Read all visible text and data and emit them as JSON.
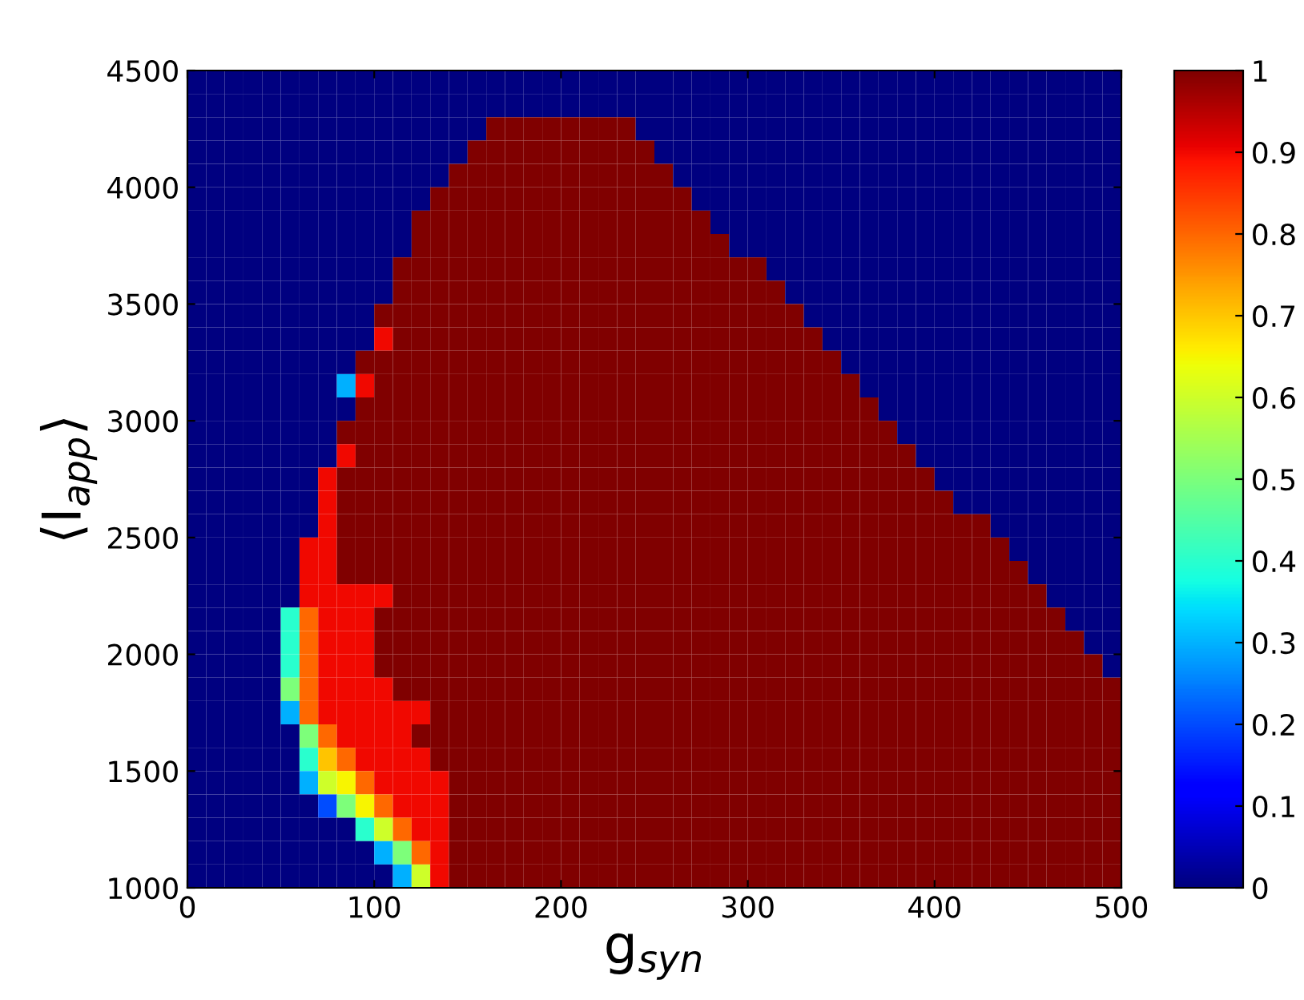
{
  "chart_data": {
    "type": "heatmap",
    "xlabel": "g$_{syn}$",
    "ylabel": "⟨I$_{app}$⟩",
    "x": [
      5,
      15,
      25,
      35,
      45,
      55,
      65,
      75,
      85,
      95,
      105,
      115,
      125,
      135,
      145,
      155,
      165,
      175,
      185,
      195,
      205,
      215,
      225,
      235,
      245,
      255,
      265,
      275,
      285,
      295,
      305,
      315,
      325,
      335,
      345,
      355,
      365,
      375,
      385,
      395,
      405,
      415,
      425,
      435,
      445,
      455,
      465,
      475,
      485,
      495
    ],
    "y": [
      4450,
      4350,
      4250,
      4150,
      4050,
      3950,
      3850,
      3750,
      3650,
      3550,
      3450,
      3350,
      3250,
      3150,
      3050,
      2950,
      2850,
      2750,
      2650,
      2550,
      2450,
      2350,
      2250,
      2150,
      2050,
      1950,
      1850,
      1750,
      1650,
      1550,
      1450,
      1350,
      1250,
      1150,
      1050
    ],
    "xlim": [
      0,
      500
    ],
    "xticks": [
      0,
      100,
      200,
      300,
      400,
      500
    ],
    "ylim": [
      1000,
      4500
    ],
    "yticks": [
      1000,
      1500,
      2000,
      2500,
      3000,
      3500,
      4000,
      4500
    ],
    "clim": [
      0,
      1
    ],
    "cticks": [
      0,
      0.1,
      0.2,
      0.3,
      0.4,
      0.5,
      0.6,
      0.7,
      0.8,
      0.9,
      1
    ],
    "cells": [
      [
        0,
        0,
        0,
        0,
        0,
        0,
        0,
        0,
        0,
        0,
        0,
        0,
        0,
        0,
        0,
        0,
        0,
        0,
        0,
        0,
        0,
        0,
        0,
        0,
        0,
        0,
        0,
        0,
        0,
        0,
        0,
        0,
        0,
        0,
        0,
        0,
        0,
        0,
        0,
        0,
        0,
        0,
        0,
        0,
        0,
        0,
        0,
        0,
        0,
        0
      ],
      [
        0,
        0,
        0,
        0,
        0,
        0,
        0,
        0,
        0,
        0,
        0,
        0,
        0,
        0,
        0,
        0,
        0,
        0,
        0,
        0,
        0,
        0,
        0,
        0,
        0,
        0,
        0,
        0,
        0,
        0,
        0,
        0,
        0,
        0,
        0,
        0,
        0,
        0,
        0,
        0,
        0,
        0,
        0,
        0,
        0,
        0,
        0,
        0,
        0,
        0
      ],
      [
        0,
        0,
        0,
        0,
        0,
        0,
        0,
        0,
        0,
        0,
        0,
        0,
        0,
        0,
        0,
        0,
        1,
        1,
        1,
        1,
        1,
        1,
        1,
        1,
        0,
        0,
        0,
        0,
        0,
        0,
        0,
        0,
        0,
        0,
        0,
        0,
        0,
        0,
        0,
        0,
        0,
        0,
        0,
        0,
        0,
        0,
        0,
        0,
        0,
        0
      ],
      [
        0,
        0,
        0,
        0,
        0,
        0,
        0,
        0,
        0,
        0,
        0,
        0,
        0,
        0,
        0,
        1,
        1,
        1,
        1,
        1,
        1,
        1,
        1,
        1,
        1,
        0,
        0,
        0,
        0,
        0,
        0,
        0,
        0,
        0,
        0,
        0,
        0,
        0,
        0,
        0,
        0,
        0,
        0,
        0,
        0,
        0,
        0,
        0,
        0,
        0
      ],
      [
        0,
        0,
        0,
        0,
        0,
        0,
        0,
        0,
        0,
        0,
        0,
        0,
        0,
        0,
        1,
        1,
        1,
        1,
        1,
        1,
        1,
        1,
        1,
        1,
        1,
        1,
        0,
        0,
        0,
        0,
        0,
        0,
        0,
        0,
        0,
        0,
        0,
        0,
        0,
        0,
        0,
        0,
        0,
        0,
        0,
        0,
        0,
        0,
        0,
        0
      ],
      [
        0,
        0,
        0,
        0,
        0,
        0,
        0,
        0,
        0,
        0,
        0,
        0,
        0,
        1,
        1,
        1,
        1,
        1,
        1,
        1,
        1,
        1,
        1,
        1,
        1,
        1,
        1,
        0,
        0,
        0,
        0,
        0,
        0,
        0,
        0,
        0,
        0,
        0,
        0,
        0,
        0,
        0,
        0,
        0,
        0,
        0,
        0,
        0,
        0,
        0
      ],
      [
        0,
        0,
        0,
        0,
        0,
        0,
        0,
        0,
        0,
        0,
        0,
        0,
        1,
        1,
        1,
        1,
        1,
        1,
        1,
        1,
        1,
        1,
        1,
        1,
        1,
        1,
        1,
        1,
        0,
        0,
        0,
        0,
        0,
        0,
        0,
        0,
        0,
        0,
        0,
        0,
        0,
        0,
        0,
        0,
        0,
        0,
        0,
        0,
        0,
        0
      ],
      [
        0,
        0,
        0,
        0,
        0,
        0,
        0,
        0,
        0,
        0,
        0,
        0,
        1,
        1,
        1,
        1,
        1,
        1,
        1,
        1,
        1,
        1,
        1,
        1,
        1,
        1,
        1,
        1,
        1,
        0,
        0,
        0,
        0,
        0,
        0,
        0,
        0,
        0,
        0,
        0,
        0,
        0,
        0,
        0,
        0,
        0,
        0,
        0,
        0,
        0
      ],
      [
        0,
        0,
        0,
        0,
        0,
        0,
        0,
        0,
        0,
        0,
        0,
        1,
        1,
        1,
        1,
        1,
        1,
        1,
        1,
        1,
        1,
        1,
        1,
        1,
        1,
        1,
        1,
        1,
        1,
        1,
        1,
        0,
        0,
        0,
        0,
        0,
        0,
        0,
        0,
        0,
        0,
        0,
        0,
        0,
        0,
        0,
        0,
        0,
        0,
        0
      ],
      [
        0,
        0,
        0,
        0,
        0,
        0,
        0,
        0,
        0,
        0,
        0,
        1,
        1,
        1,
        1,
        1,
        1,
        1,
        1,
        1,
        1,
        1,
        1,
        1,
        1,
        1,
        1,
        1,
        1,
        1,
        1,
        1,
        0,
        0,
        0,
        0,
        0,
        0,
        0,
        0,
        0,
        0,
        0,
        0,
        0,
        0,
        0,
        0,
        0,
        0
      ],
      [
        0,
        0,
        0,
        0,
        0,
        0,
        0,
        0,
        0,
        0,
        1,
        1,
        1,
        1,
        1,
        1,
        1,
        1,
        1,
        1,
        1,
        1,
        1,
        1,
        1,
        1,
        1,
        1,
        1,
        1,
        1,
        1,
        1,
        0,
        0,
        0,
        0,
        0,
        0,
        0,
        0,
        0,
        0,
        0,
        0,
        0,
        0,
        0,
        0,
        0
      ],
      [
        0,
        0,
        0,
        0,
        0,
        0,
        0,
        0,
        0,
        0,
        0.9,
        1,
        1,
        1,
        1,
        1,
        1,
        1,
        1,
        1,
        1,
        1,
        1,
        1,
        1,
        1,
        1,
        1,
        1,
        1,
        1,
        1,
        1,
        1,
        0,
        0,
        0,
        0,
        0,
        0,
        0,
        0,
        0,
        0,
        0,
        0,
        0,
        0,
        0,
        0
      ],
      [
        0,
        0,
        0,
        0,
        0,
        0,
        0,
        0,
        0,
        1,
        1,
        1,
        1,
        1,
        1,
        1,
        1,
        1,
        1,
        1,
        1,
        1,
        1,
        1,
        1,
        1,
        1,
        1,
        1,
        1,
        1,
        1,
        1,
        1,
        1,
        0,
        0,
        0,
        0,
        0,
        0,
        0,
        0,
        0,
        0,
        0,
        0,
        0,
        0,
        0
      ],
      [
        0,
        0,
        0,
        0,
        0,
        0,
        0,
        0,
        0.3,
        0.9,
        1,
        1,
        1,
        1,
        1,
        1,
        1,
        1,
        1,
        1,
        1,
        1,
        1,
        1,
        1,
        1,
        1,
        1,
        1,
        1,
        1,
        1,
        1,
        1,
        1,
        1,
        0,
        0,
        0,
        0,
        0,
        0,
        0,
        0,
        0,
        0,
        0,
        0,
        0,
        0
      ],
      [
        0,
        0,
        0,
        0,
        0,
        0,
        0,
        0,
        0,
        1,
        1,
        1,
        1,
        1,
        1,
        1,
        1,
        1,
        1,
        1,
        1,
        1,
        1,
        1,
        1,
        1,
        1,
        1,
        1,
        1,
        1,
        1,
        1,
        1,
        1,
        1,
        1,
        0,
        0,
        0,
        0,
        0,
        0,
        0,
        0,
        0,
        0,
        0,
        0,
        0
      ],
      [
        0,
        0,
        0,
        0,
        0,
        0,
        0,
        0,
        1,
        1,
        1,
        1,
        1,
        1,
        1,
        1,
        1,
        1,
        1,
        1,
        1,
        1,
        1,
        1,
        1,
        1,
        1,
        1,
        1,
        1,
        1,
        1,
        1,
        1,
        1,
        1,
        1,
        1,
        0,
        0,
        0,
        0,
        0,
        0,
        0,
        0,
        0,
        0,
        0,
        0
      ],
      [
        0,
        0,
        0,
        0,
        0,
        0,
        0,
        0,
        0.9,
        1,
        1,
        1,
        1,
        1,
        1,
        1,
        1,
        1,
        1,
        1,
        1,
        1,
        1,
        1,
        1,
        1,
        1,
        1,
        1,
        1,
        1,
        1,
        1,
        1,
        1,
        1,
        1,
        1,
        1,
        0,
        0,
        0,
        0,
        0,
        0,
        0,
        0,
        0,
        0,
        0
      ],
      [
        0,
        0,
        0,
        0,
        0,
        0,
        0,
        0.9,
        1,
        1,
        1,
        1,
        1,
        1,
        1,
        1,
        1,
        1,
        1,
        1,
        1,
        1,
        1,
        1,
        1,
        1,
        1,
        1,
        1,
        1,
        1,
        1,
        1,
        1,
        1,
        1,
        1,
        1,
        1,
        1,
        0,
        0,
        0,
        0,
        0,
        0,
        0,
        0,
        0,
        0
      ],
      [
        0,
        0,
        0,
        0,
        0,
        0,
        0,
        0.9,
        1,
        1,
        1,
        1,
        1,
        1,
        1,
        1,
        1,
        1,
        1,
        1,
        1,
        1,
        1,
        1,
        1,
        1,
        1,
        1,
        1,
        1,
        1,
        1,
        1,
        1,
        1,
        1,
        1,
        1,
        1,
        1,
        1,
        0,
        0,
        0,
        0,
        0,
        0,
        0,
        0,
        0
      ],
      [
        0,
        0,
        0,
        0,
        0,
        0,
        0,
        0.9,
        1,
        1,
        1,
        1,
        1,
        1,
        1,
        1,
        1,
        1,
        1,
        1,
        1,
        1,
        1,
        1,
        1,
        1,
        1,
        1,
        1,
        1,
        1,
        1,
        1,
        1,
        1,
        1,
        1,
        1,
        1,
        1,
        1,
        1,
        1,
        0,
        0,
        0,
        0,
        0,
        0,
        0
      ],
      [
        0,
        0,
        0,
        0,
        0,
        0,
        0.9,
        0.9,
        1,
        1,
        1,
        1,
        1,
        1,
        1,
        1,
        1,
        1,
        1,
        1,
        1,
        1,
        1,
        1,
        1,
        1,
        1,
        1,
        1,
        1,
        1,
        1,
        1,
        1,
        1,
        1,
        1,
        1,
        1,
        1,
        1,
        1,
        1,
        1,
        0,
        0,
        0,
        0,
        0,
        0
      ],
      [
        0,
        0,
        0,
        0,
        0,
        0,
        0.9,
        0.9,
        1,
        1,
        1,
        1,
        1,
        1,
        1,
        1,
        1,
        1,
        1,
        1,
        1,
        1,
        1,
        1,
        1,
        1,
        1,
        1,
        1,
        1,
        1,
        1,
        1,
        1,
        1,
        1,
        1,
        1,
        1,
        1,
        1,
        1,
        1,
        1,
        1,
        0,
        0,
        0,
        0,
        0
      ],
      [
        0,
        0,
        0,
        0,
        0,
        0,
        0.9,
        0.9,
        0.9,
        0.9,
        0.9,
        1,
        1,
        1,
        1,
        1,
        1,
        1,
        1,
        1,
        1,
        1,
        1,
        1,
        1,
        1,
        1,
        1,
        1,
        1,
        1,
        1,
        1,
        1,
        1,
        1,
        1,
        1,
        1,
        1,
        1,
        1,
        1,
        1,
        1,
        1,
        0,
        0,
        0,
        0
      ],
      [
        0,
        0,
        0,
        0,
        0,
        0.4,
        0.8,
        0.9,
        0.9,
        0.9,
        1,
        1,
        1,
        1,
        1,
        1,
        1,
        1,
        1,
        1,
        1,
        1,
        1,
        1,
        1,
        1,
        1,
        1,
        1,
        1,
        1,
        1,
        1,
        1,
        1,
        1,
        1,
        1,
        1,
        1,
        1,
        1,
        1,
        1,
        1,
        1,
        1,
        0,
        0,
        0
      ],
      [
        0,
        0,
        0,
        0,
        0,
        0.4,
        0.8,
        0.9,
        0.9,
        0.9,
        1,
        1,
        1,
        1,
        1,
        1,
        1,
        1,
        1,
        1,
        1,
        1,
        1,
        1,
        1,
        1,
        1,
        1,
        1,
        1,
        1,
        1,
        1,
        1,
        1,
        1,
        1,
        1,
        1,
        1,
        1,
        1,
        1,
        1,
        1,
        1,
        1,
        1,
        0,
        0
      ],
      [
        0,
        0,
        0,
        0,
        0,
        0.4,
        0.8,
        0.9,
        0.9,
        0.9,
        1,
        1,
        1,
        1,
        1,
        1,
        1,
        1,
        1,
        1,
        1,
        1,
        1,
        1,
        1,
        1,
        1,
        1,
        1,
        1,
        1,
        1,
        1,
        1,
        1,
        1,
        1,
        1,
        1,
        1,
        1,
        1,
        1,
        1,
        1,
        1,
        1,
        1,
        1,
        0
      ],
      [
        0,
        0,
        0,
        0,
        0,
        0.5,
        0.8,
        0.9,
        0.9,
        0.9,
        0.9,
        1,
        1,
        1,
        1,
        1,
        1,
        1,
        1,
        1,
        1,
        1,
        1,
        1,
        1,
        1,
        1,
        1,
        1,
        1,
        1,
        1,
        1,
        1,
        1,
        1,
        1,
        1,
        1,
        1,
        1,
        1,
        1,
        1,
        1,
        1,
        1,
        1,
        1,
        1
      ],
      [
        0,
        0,
        0,
        0,
        0,
        0.3,
        0.8,
        0.9,
        0.9,
        0.9,
        0.9,
        0.9,
        0.9,
        1,
        1,
        1,
        1,
        1,
        1,
        1,
        1,
        1,
        1,
        1,
        1,
        1,
        1,
        1,
        1,
        1,
        1,
        1,
        1,
        1,
        1,
        1,
        1,
        1,
        1,
        1,
        1,
        1,
        1,
        1,
        1,
        1,
        1,
        1,
        1,
        1
      ],
      [
        0,
        0,
        0,
        0,
        0,
        0,
        0.5,
        0.8,
        0.9,
        0.9,
        0.9,
        0.9,
        1,
        1,
        1,
        1,
        1,
        1,
        1,
        1,
        1,
        1,
        1,
        1,
        1,
        1,
        1,
        1,
        1,
        1,
        1,
        1,
        1,
        1,
        1,
        1,
        1,
        1,
        1,
        1,
        1,
        1,
        1,
        1,
        1,
        1,
        1,
        1,
        1,
        1
      ],
      [
        0,
        0,
        0,
        0,
        0,
        0,
        0.4,
        0.7,
        0.8,
        0.9,
        0.9,
        0.9,
        0.9,
        1,
        1,
        1,
        1,
        1,
        1,
        1,
        1,
        1,
        1,
        1,
        1,
        1,
        1,
        1,
        1,
        1,
        1,
        1,
        1,
        1,
        1,
        1,
        1,
        1,
        1,
        1,
        1,
        1,
        1,
        1,
        1,
        1,
        1,
        1,
        1,
        1
      ],
      [
        0,
        0,
        0,
        0,
        0,
        0,
        0.3,
        0.6,
        0.65,
        0.8,
        0.9,
        0.9,
        0.9,
        0.9,
        1,
        1,
        1,
        1,
        1,
        1,
        1,
        1,
        1,
        1,
        1,
        1,
        1,
        1,
        1,
        1,
        1,
        1,
        1,
        1,
        1,
        1,
        1,
        1,
        1,
        1,
        1,
        1,
        1,
        1,
        1,
        1,
        1,
        1,
        1,
        1
      ],
      [
        0,
        0,
        0,
        0,
        0,
        0,
        0,
        0.2,
        0.5,
        0.65,
        0.8,
        0.9,
        0.9,
        0.9,
        1,
        1,
        1,
        1,
        1,
        1,
        1,
        1,
        1,
        1,
        1,
        1,
        1,
        1,
        1,
        1,
        1,
        1,
        1,
        1,
        1,
        1,
        1,
        1,
        1,
        1,
        1,
        1,
        1,
        1,
        1,
        1,
        1,
        1,
        1,
        1
      ],
      [
        0,
        0,
        0,
        0,
        0,
        0,
        0,
        0,
        0,
        0.4,
        0.6,
        0.8,
        0.9,
        0.9,
        1,
        1,
        1,
        1,
        1,
        1,
        1,
        1,
        1,
        1,
        1,
        1,
        1,
        1,
        1,
        1,
        1,
        1,
        1,
        1,
        1,
        1,
        1,
        1,
        1,
        1,
        1,
        1,
        1,
        1,
        1,
        1,
        1,
        1,
        1,
        1
      ],
      [
        0,
        0,
        0,
        0,
        0,
        0,
        0,
        0,
        0,
        0,
        0.3,
        0.5,
        0.8,
        0.9,
        1,
        1,
        1,
        1,
        1,
        1,
        1,
        1,
        1,
        1,
        1,
        1,
        1,
        1,
        1,
        1,
        1,
        1,
        1,
        1,
        1,
        1,
        1,
        1,
        1,
        1,
        1,
        1,
        1,
        1,
        1,
        1,
        1,
        1,
        1,
        1
      ],
      [
        0,
        0,
        0,
        0,
        0,
        0,
        0,
        0,
        0,
        0,
        0,
        0.3,
        0.6,
        0.9,
        1,
        1,
        1,
        1,
        1,
        1,
        1,
        1,
        1,
        1,
        1,
        1,
        1,
        1,
        1,
        1,
        1,
        1,
        1,
        1,
        1,
        1,
        1,
        1,
        1,
        1,
        1,
        1,
        1,
        1,
        1,
        1,
        1,
        1,
        1,
        1
      ]
    ]
  }
}
